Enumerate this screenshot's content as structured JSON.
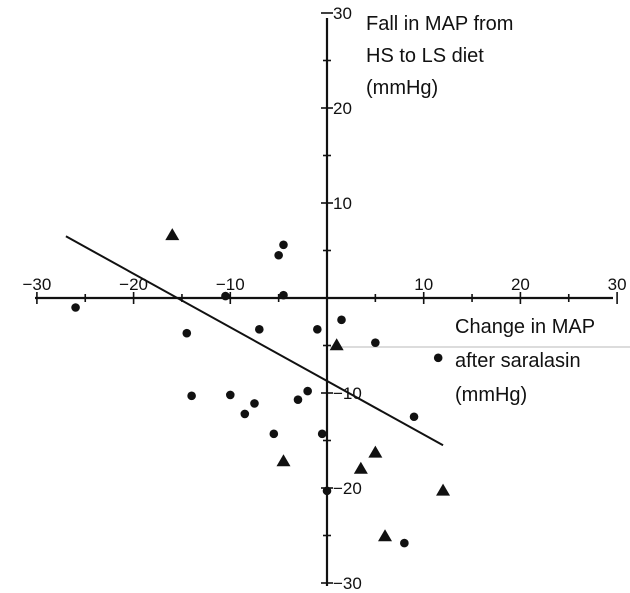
{
  "chart_data": {
    "type": "scatter",
    "xlim": [
      -30,
      30
    ],
    "ylim": [
      -30,
      30
    ],
    "x_ticks": [
      -30,
      -20,
      -10,
      10,
      20,
      30
    ],
    "x_tick_labels": [
      "−30",
      "−20",
      "−10",
      "10",
      "20",
      "30"
    ],
    "y_ticks": [
      30,
      20,
      10,
      -10,
      -20,
      -30
    ],
    "y_tick_labels": [
      "30",
      "20",
      "10",
      "−10",
      "−20",
      "−30"
    ],
    "y_title": [
      "Fall in MAP from",
      "HS to LS diet",
      "(mmHg)"
    ],
    "x_title": [
      "Change in MAP",
      "after saralasin",
      "(mmHg)"
    ],
    "grid": false,
    "series": [
      {
        "marker": "circle",
        "points": [
          {
            "x": -26,
            "y": -1
          },
          {
            "x": -14.5,
            "y": -3.7
          },
          {
            "x": -14,
            "y": -10.3
          },
          {
            "x": -10.5,
            "y": 0.2
          },
          {
            "x": -10,
            "y": -10.2
          },
          {
            "x": -8.5,
            "y": -12.2
          },
          {
            "x": -7.5,
            "y": -11.1
          },
          {
            "x": -7,
            "y": -3.3
          },
          {
            "x": -5.5,
            "y": -14.3
          },
          {
            "x": -5,
            "y": 4.5
          },
          {
            "x": -4.5,
            "y": 5.6
          },
          {
            "x": -4.5,
            "y": 0.3
          },
          {
            "x": -3,
            "y": -10.7
          },
          {
            "x": -2,
            "y": -9.8
          },
          {
            "x": -1,
            "y": -3.3
          },
          {
            "x": -0.5,
            "y": -14.3
          },
          {
            "x": 0,
            "y": -20.3
          },
          {
            "x": 1.5,
            "y": -2.3
          },
          {
            "x": 5,
            "y": -4.7
          },
          {
            "x": 8,
            "y": -25.8
          },
          {
            "x": 9,
            "y": -12.5
          },
          {
            "x": 11.5,
            "y": -6.3
          }
        ]
      },
      {
        "marker": "triangle",
        "points": [
          {
            "x": -16,
            "y": 6.6
          },
          {
            "x": -4.5,
            "y": -17.2
          },
          {
            "x": 1,
            "y": -5
          },
          {
            "x": 3.5,
            "y": -18
          },
          {
            "x": 5,
            "y": -16.3
          },
          {
            "x": 6,
            "y": -25.1
          },
          {
            "x": 12,
            "y": -20.3
          }
        ]
      }
    ],
    "regression_line": {
      "x": [
        -27,
        12
      ],
      "y": [
        6.5,
        -15.5
      ]
    }
  }
}
